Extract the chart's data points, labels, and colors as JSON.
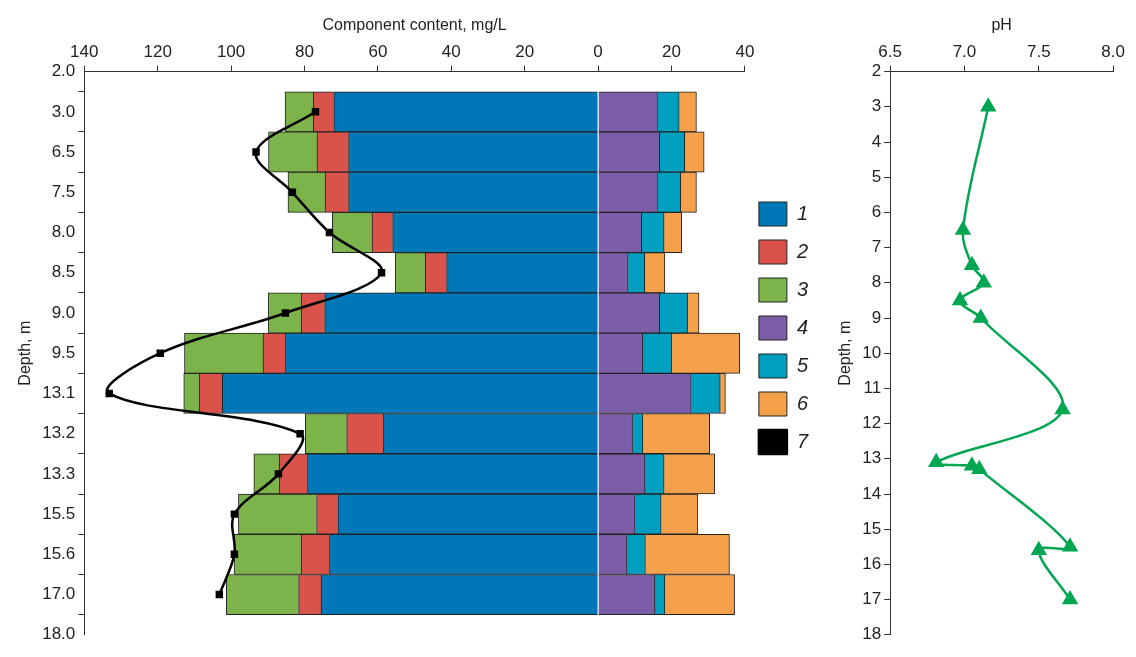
{
  "chart_data": [
    {
      "type": "bar",
      "orientation": "horizontal",
      "stacked": true,
      "xlabel": "Component content, mg/L",
      "ylabel": "Depth, m",
      "legend": "right",
      "xlim": [
        -140,
        40
      ],
      "xticks": [
        {
          "value": -140,
          "label": "140"
        },
        {
          "value": -120,
          "label": "120"
        },
        {
          "value": -100,
          "label": "100"
        },
        {
          "value": -80,
          "label": "80"
        },
        {
          "value": -60,
          "label": "60"
        },
        {
          "value": -40,
          "label": "40"
        },
        {
          "value": -20,
          "label": "20"
        },
        0,
        20,
        40
      ],
      "categories": [
        "2.0",
        "3.0",
        "6.5",
        "7.5",
        "8.0",
        "8.5",
        "9.0",
        "9.5",
        "13.1",
        "13.2",
        "13.3",
        "15.5",
        "15.6",
        "17.0",
        "18.0"
      ],
      "series": [
        {
          "name": "1",
          "color": "#0077b6",
          "values": [
            null,
            -72,
            -68,
            -68,
            -56,
            -41.3,
            -74.5,
            -85.2,
            -102.4,
            -58.5,
            -79.2,
            -70.9,
            -73.2,
            -75.5,
            null
          ]
        },
        {
          "name": "2",
          "color": "#d9534a",
          "values": [
            null,
            -5.6,
            -8.6,
            -6.4,
            -5.6,
            -5.8,
            -6.4,
            -6.1,
            -6.3,
            -10,
            -7.7,
            -5.8,
            -7.7,
            -6.1,
            null
          ]
        },
        {
          "name": "3",
          "color": "#7cb34a",
          "values": [
            null,
            -7.7,
            -13.2,
            -10.1,
            -10.8,
            -8.2,
            -9,
            -21.4,
            -4.2,
            -11.3,
            -6.9,
            -21.3,
            -18.3,
            -19.7,
            null
          ]
        },
        {
          "name": "4",
          "color": "#7b5ea7",
          "values": [
            null,
            16.2,
            16.8,
            16.2,
            11.9,
            8.2,
            16.8,
            12.2,
            25.4,
            9.4,
            12.8,
            10.1,
            7.9,
            15.5,
            null
          ]
        },
        {
          "name": "5",
          "color": "#009fc0",
          "values": [
            null,
            5.9,
            6.8,
            6.3,
            6.1,
            4.5,
            7.6,
            7.9,
            7.9,
            2.8,
            5.2,
            7.1,
            5,
            2.7,
            null
          ]
        },
        {
          "name": "6",
          "color": "#f5a04a",
          "values": [
            null,
            4.7,
            5.3,
            4.3,
            4.8,
            5.5,
            3.1,
            18.5,
            1.4,
            18.2,
            13.8,
            10,
            22.9,
            19,
            null
          ]
        },
        {
          "name": "7",
          "type": "line",
          "marker": "square",
          "color": "#000000",
          "values": [
            null,
            -77,
            -93.2,
            -83.3,
            -73.2,
            -59,
            -85.2,
            -119.3,
            -133.2,
            -81.2,
            -87.1,
            -99.1,
            -99.1,
            -103.2,
            null
          ]
        }
      ]
    },
    {
      "type": "line",
      "xlabel": "pH",
      "ylabel": "Depth, m",
      "marker": "triangle",
      "line_style": "solid",
      "xlim": [
        6.5,
        8.0
      ],
      "xticks": [
        {
          "value": 6.5,
          "label": "6.5"
        },
        {
          "value": 7,
          "label": "7.0"
        },
        {
          "value": 7.5,
          "label": "7.5"
        },
        {
          "value": 8,
          "label": "8.0"
        }
      ],
      "ylim": [
        18,
        2
      ],
      "yticks": [
        2,
        3,
        4,
        5,
        6,
        7,
        8,
        9,
        10,
        11,
        12,
        13,
        14,
        15,
        16,
        17,
        18
      ],
      "series": [
        {
          "color": "#00a651",
          "x": [
            7.16,
            6.99,
            7.05,
            7.13,
            6.97,
            7.11,
            7.66,
            6.81,
            7.05,
            7.1,
            7.71,
            7.5,
            7.71
          ],
          "values": [
            3,
            6.5,
            7.5,
            8,
            8.5,
            9,
            11.6,
            13.1,
            13.2,
            13.3,
            15.5,
            15.6,
            17
          ]
        }
      ]
    }
  ]
}
